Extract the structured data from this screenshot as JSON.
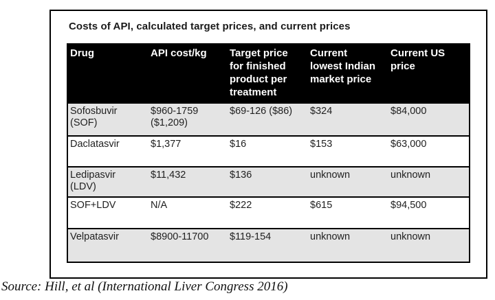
{
  "figure": {
    "title": "Costs of API, calculated target prices, and current prices"
  },
  "table": {
    "columns": [
      "Drug",
      "API cost/kg",
      "Target price\nfor finished\nproduct per\ntreatment",
      "Current\nlowest Indian\nmarket price",
      "Current US\nprice"
    ],
    "rows": [
      {
        "cells": [
          "Sofosbuvir\n(SOF)",
          "$960-1759\n($1,209)",
          "$69-126 ($86)",
          "$324",
          "$84,000"
        ]
      },
      {
        "cells": [
          "Daclatasvir",
          "$1,377",
          "$16",
          "$153",
          "$63,000"
        ]
      },
      {
        "cells": [
          "Ledipasvir\n(LDV)",
          "$11,432",
          "$136",
          "unknown",
          "unknown"
        ]
      },
      {
        "cells": [
          "SOF+LDV",
          "N/A",
          "$222",
          "$615",
          "$94,500"
        ]
      },
      {
        "cells": [
          "Velpatasvir",
          "$8900-11700",
          "$119-154",
          "unknown",
          "unknown"
        ]
      }
    ]
  },
  "source_line": "Source: Hill, et al (International Liver Congress 2016)",
  "colors": {
    "header_bg": "#000000",
    "header_text": "#ffffff",
    "row_alt_bg": "#e4e4e4",
    "border": "#000000"
  }
}
